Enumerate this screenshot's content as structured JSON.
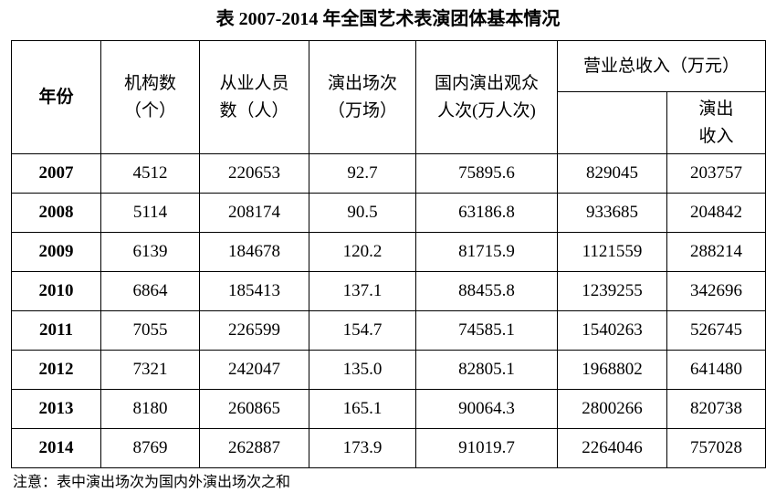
{
  "title": "表  2007-2014 年全国艺术表演团体基本情况",
  "table": {
    "header": {
      "year": "年份",
      "institutions": [
        "机构数",
        "（个）"
      ],
      "employees": [
        "从业人员",
        "数（人）"
      ],
      "performances": [
        "演出场次",
        "（万场）"
      ],
      "audience": [
        "国内演出观众",
        "人次(万人次)"
      ],
      "revenue": "营业总收入（万元）",
      "show_revenue": [
        "演出",
        "收入"
      ]
    },
    "rows": [
      [
        "2007",
        "4512",
        "220653",
        "92.7",
        "75895.6",
        "829045",
        "203757"
      ],
      [
        "2008",
        "5114",
        "208174",
        "90.5",
        "63186.8",
        "933685",
        "204842"
      ],
      [
        "2009",
        "6139",
        "184678",
        "120.2",
        "81715.9",
        "1121559",
        "288214"
      ],
      [
        "2010",
        "6864",
        "185413",
        "137.1",
        "88455.8",
        "1239255",
        "342696"
      ],
      [
        "2011",
        "7055",
        "226599",
        "154.7",
        "74585.1",
        "1540263",
        "526745"
      ],
      [
        "2012",
        "7321",
        "242047",
        "135.0",
        "82805.1",
        "1968802",
        "641480"
      ],
      [
        "2013",
        "8180",
        "260865",
        "165.1",
        "90064.3",
        "2800266",
        "820738"
      ],
      [
        "2014",
        "8769",
        "262887",
        "173.9",
        "91019.7",
        "2264046",
        "757028"
      ]
    ]
  },
  "note": "注意：表中演出场次为国内外演出场次之和"
}
